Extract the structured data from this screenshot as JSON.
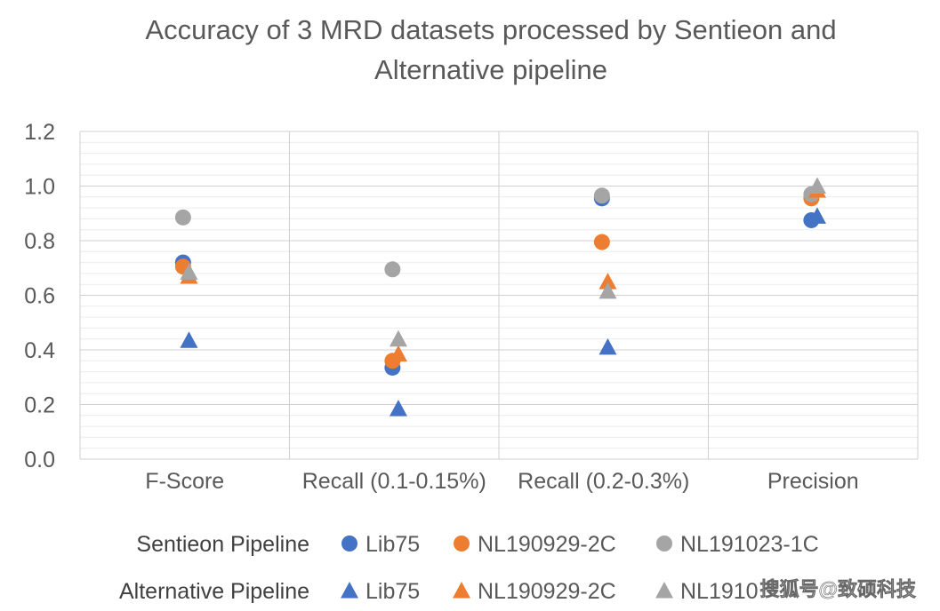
{
  "chart_data": {
    "type": "scatter",
    "title": [
      "Accuracy of 3 MRD datasets processed by Sentieon and",
      "Alternative pipeline"
    ],
    "categories": [
      "F-Score",
      "Recall (0.1-0.15%)",
      "Recall (0.2-0.3%)",
      "Precision"
    ],
    "ylim": [
      0,
      1.2
    ],
    "yticks": [
      "0.0",
      "0.2",
      "0.4",
      "0.6",
      "0.8",
      "1.0",
      "1.2"
    ],
    "ytick_values": [
      0,
      0.2,
      0.4,
      0.6,
      0.8,
      1.0,
      1.2
    ],
    "grid": true,
    "groups": [
      {
        "name": "Sentieon Pipeline",
        "marker": "circle",
        "series": [
          {
            "name": "Lib75",
            "color": "#4472C4",
            "values": [
              0.72,
              0.335,
              0.955,
              0.875
            ]
          },
          {
            "name": "NL190929-2C",
            "color": "#ED7D31",
            "values": [
              0.705,
              0.36,
              0.795,
              0.955
            ]
          },
          {
            "name": "NL191023-1C",
            "color": "#A5A5A5",
            "values": [
              0.885,
              0.695,
              0.965,
              0.97
            ]
          }
        ]
      },
      {
        "name": "Alternative Pipeline",
        "marker": "triangle",
        "series": [
          {
            "name": "Lib75",
            "color": "#4472C4",
            "values": [
              0.435,
              0.185,
              0.41,
              0.89
            ]
          },
          {
            "name": "NL190929-2C",
            "color": "#ED7D31",
            "values": [
              0.67,
              0.385,
              0.65,
              0.985
            ]
          },
          {
            "name": "NL1910",
            "color": "#A5A5A5",
            "values": [
              0.685,
              0.44,
              0.615,
              1.0
            ]
          }
        ]
      }
    ]
  },
  "watermark": "搜狐号@致硕科技"
}
